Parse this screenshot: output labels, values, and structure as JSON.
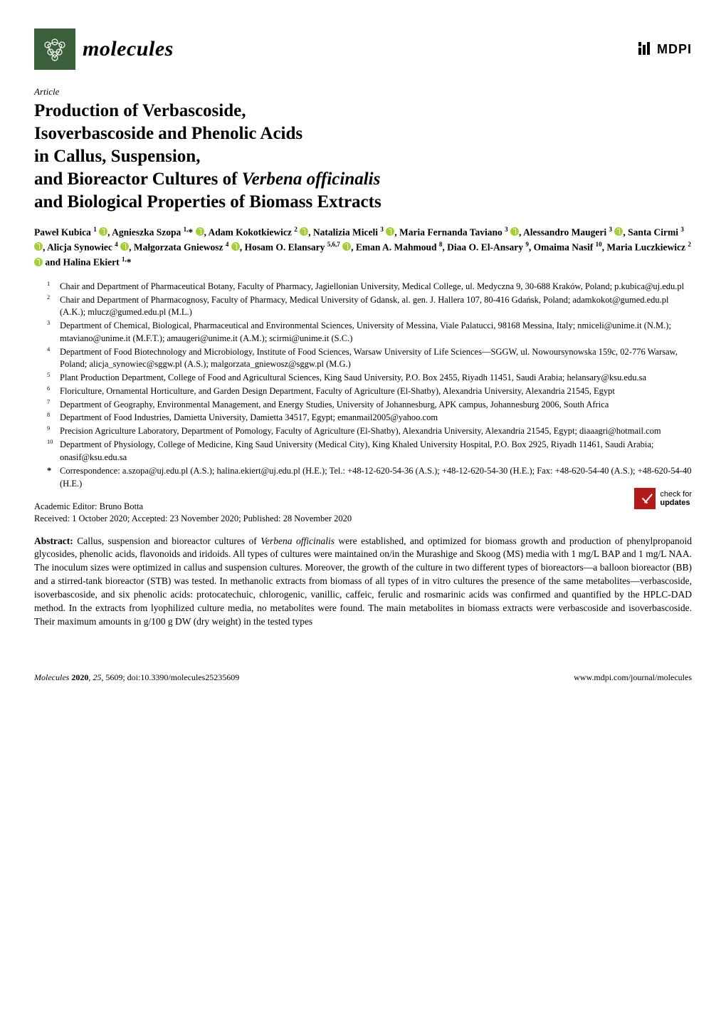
{
  "journal": {
    "logo_bg": "#3a5f3a",
    "name": "molecules",
    "publisher": "MDPI"
  },
  "article_type": "Article",
  "title_lines": [
    "Production of Verbascoside,",
    "Isoverbascoside and Phenolic Acids",
    "in Callus, Suspension,",
    "and Bioreactor Cultures of Verbena officinalis",
    "and Biological Properties of Biomass Extracts"
  ],
  "title_italic_segment": "Verbena officinalis",
  "authors_html": "Paweł Kubica <sup>1</sup> {O}, Agnieszka Szopa <sup>1,</sup>* {O}, Adam Kokotkiewicz <sup>2</sup> {O}, Natalizia Miceli <sup>3</sup> {O}, Maria Fernanda Taviano <sup>3</sup> {O}, Alessandro Maugeri <sup>3</sup> {O}, Santa Cirmi <sup>3</sup> {O}, Alicja Synowiec <sup>4</sup> {O}, Małgorzata Gniewosz <sup>4</sup> {O}, Hosam O. Elansary <sup>5,6,7</sup> {O}, Eman A. Mahmoud <sup>8</sup>, Diaa O. El-Ansary <sup>9</sup>, Omaima Nasif <sup>10</sup>, Maria Luczkiewicz <sup>2</sup> {O} and Halina Ekiert <sup>1,</sup>*",
  "affiliations": [
    {
      "n": "1",
      "text": "Chair and Department of Pharmaceutical Botany, Faculty of Pharmacy, Jagiellonian University, Medical College, ul. Medyczna 9, 30-688 Kraków, Poland; p.kubica@uj.edu.pl"
    },
    {
      "n": "2",
      "text": "Chair and Department of Pharmacognosy, Faculty of Pharmacy, Medical University of Gdansk, al. gen. J. Hallera 107, 80-416 Gdańsk, Poland; adamkokot@gumed.edu.pl (A.K.); mlucz@gumed.edu.pl (M.L.)"
    },
    {
      "n": "3",
      "text": "Department of Chemical, Biological, Pharmaceutical and Environmental Sciences, University of Messina, Viale Palatucci, 98168 Messina, Italy; nmiceli@unime.it (N.M.); mtaviano@unime.it (M.F.T.); amaugeri@unime.it (A.M.); scirmi@unime.it (S.C.)"
    },
    {
      "n": "4",
      "text": "Department of Food Biotechnology and Microbiology, Institute of Food Sciences, Warsaw University of Life Sciences—SGGW, ul. Nowoursynowska 159c, 02-776 Warsaw, Poland; alicja_synowiec@sggw.pl (A.S.); malgorzata_gniewosz@sggw.pl (M.G.)"
    },
    {
      "n": "5",
      "text": "Plant Production Department, College of Food and Agricultural Sciences, King Saud University, P.O. Box 2455, Riyadh 11451, Saudi Arabia; helansary@ksu.edu.sa"
    },
    {
      "n": "6",
      "text": "Floriculture, Ornamental Horticulture, and Garden Design Department, Faculty of Agriculture (El-Shatby), Alexandria University, Alexandria 21545, Egypt"
    },
    {
      "n": "7",
      "text": "Department of Geography, Environmental Management, and Energy Studies, University of Johannesburg, APK campus, Johannesburg 2006, South Africa"
    },
    {
      "n": "8",
      "text": "Department of Food Industries, Damietta University, Damietta 34517, Egypt; emanmail2005@yahoo.com"
    },
    {
      "n": "9",
      "text": "Precision Agriculture Laboratory, Department of Pomology, Faculty of Agriculture (El-Shatby), Alexandria University, Alexandria 21545, Egypt; diaaagri@hotmail.com"
    },
    {
      "n": "10",
      "text": "Department of Physiology, College of Medicine, King Saud University (Medical City), King Khaled University Hospital, P.O. Box 2925, Riyadh 11461, Saudi Arabia; onasif@ksu.edu.sa"
    }
  ],
  "correspondence": "Correspondence: a.szopa@uj.edu.pl (A.S.); halina.ekiert@uj.edu.pl (H.E.); Tel.: +48-12-620-54-36 (A.S.); +48-12-620-54-30 (H.E.); Fax: +48-620-54-40 (A.S.); +48-620-54-40 (H.E.)",
  "editor_line": "Academic Editor: Bruno Botta",
  "dates_line": "Received: 1 October 2020; Accepted: 23 November 2020; Published: 28 November 2020",
  "updates_badge": {
    "line1": "check for",
    "line2": "updates"
  },
  "abstract_label": "Abstract:",
  "abstract_body": "Callus, suspension and bioreactor cultures of Verbena officinalis were established, and optimized for biomass growth and production of phenylpropanoid glycosides, phenolic acids, flavonoids and iridoids. All types of cultures were maintained on/in the Murashige and Skoog (MS) media with 1 mg/L BAP and 1 mg/L NAA. The inoculum sizes were optimized in callus and suspension cultures. Moreover, the growth of the culture in two different types of bioreactors—a balloon bioreactor (BB) and a stirred-tank bioreactor (STB) was tested. In methanolic extracts from biomass of all types of in vitro cultures the presence of the same metabolites—verbascoside, isoverbascoside, and six phenolic acids: protocatechuic, chlorogenic, vanillic, caffeic, ferulic and rosmarinic acids was confirmed and quantified by the HPLC-DAD method. In the extracts from lyophilized culture media, no metabolites were found. The main metabolites in biomass extracts were verbascoside and isoverbascoside. Their maximum amounts in g/100 g DW (dry weight) in the tested types",
  "footer": {
    "left_journal": "Molecules",
    "left_rest": " 2020, 25, 5609; doi:10.3390/molecules25235609",
    "right": "www.mdpi.com/journal/molecules"
  },
  "colors": {
    "logo_bg": "#3a5f3a",
    "orcid": "#a6ce39",
    "updates": "#b31b1b",
    "text": "#000000",
    "bg": "#ffffff"
  }
}
